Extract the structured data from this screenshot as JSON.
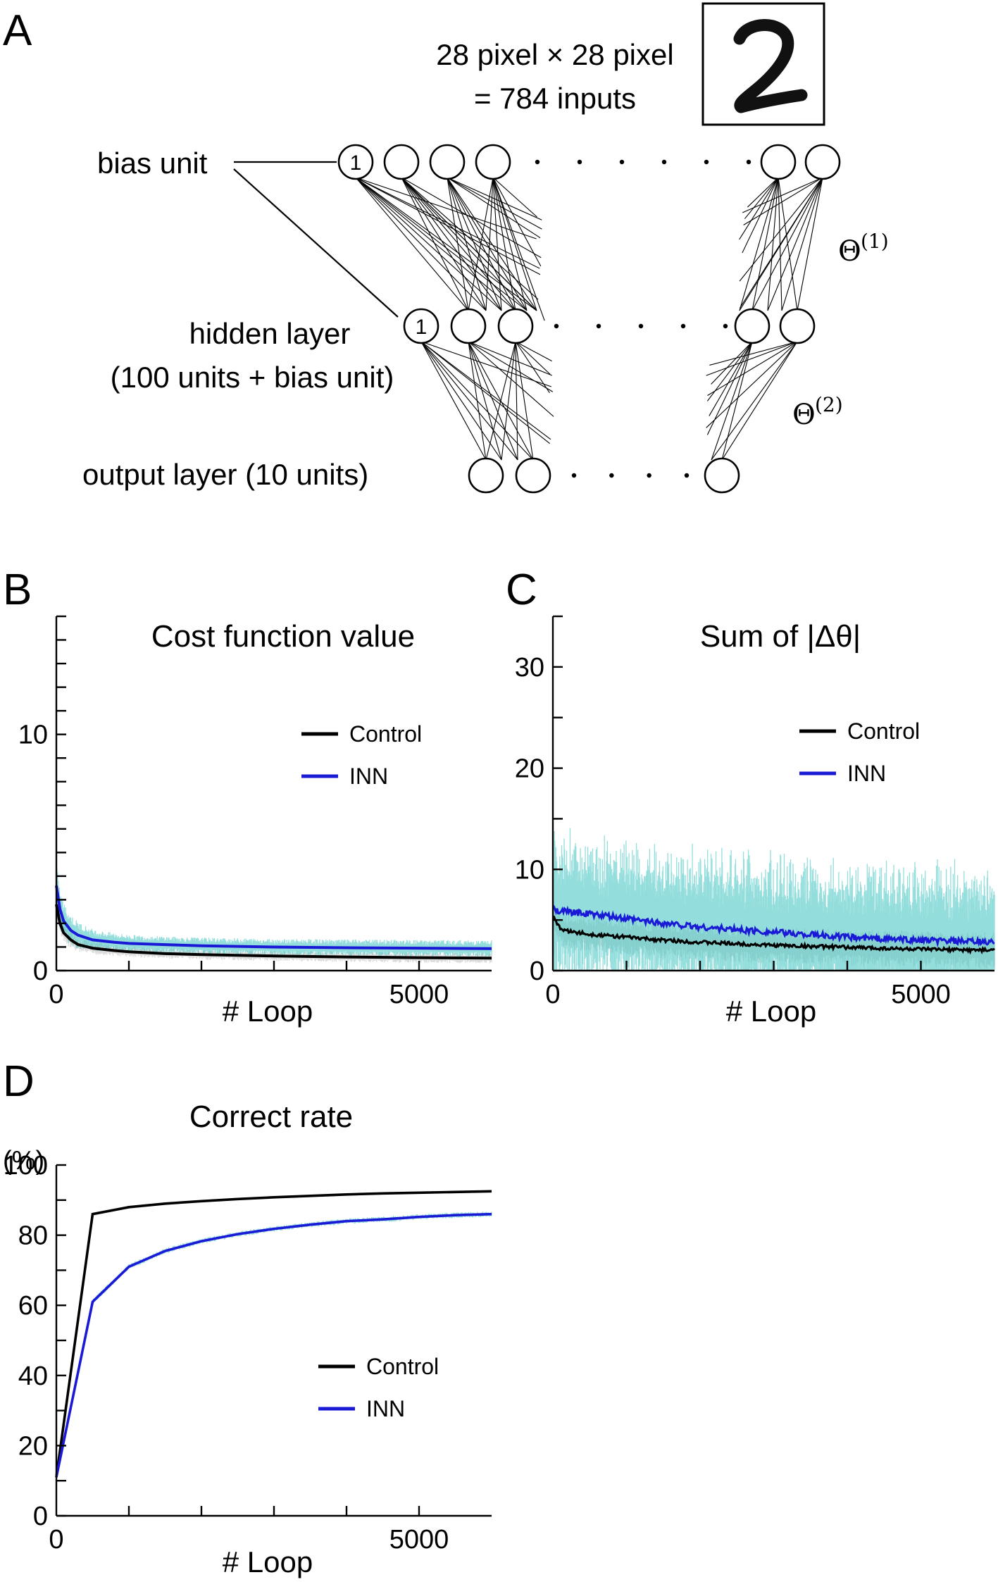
{
  "panel_a": {
    "letter": "A",
    "input_line1": "28 pixel × 28 pixel",
    "input_line2": "= 784 inputs",
    "bias_label": "bias unit",
    "hidden_line1": "hidden layer",
    "hidden_line2": "(100 units + bias unit)",
    "output_label": "output layer (10 units)",
    "bias_node_text": "1",
    "theta_symbol": "Θ",
    "theta1_sup": "(1)",
    "theta2_sup": "(2)",
    "digit_image": "handwritten-digit-2"
  },
  "colors": {
    "control": "#000000",
    "inn": "#1a1ad6",
    "inn_band": "#3cc4c0",
    "control_band": "#b8b8b8"
  },
  "chart_data": [
    {
      "panel": "B",
      "type": "line",
      "title": "Cost function value",
      "xlabel": "# Loop",
      "ylabel": "",
      "xlim": [
        0,
        6000
      ],
      "ylim": [
        0,
        15
      ],
      "x_ticks_labeled": [
        0,
        5000
      ],
      "y_ticks_labeled": [
        0,
        10
      ],
      "legend_position": "upper-right",
      "series": [
        {
          "name": "Control",
          "x": [
            0,
            50,
            100,
            200,
            300,
            500,
            800,
            1000,
            1500,
            2000,
            3000,
            4000,
            5000,
            6000
          ],
          "values": [
            2.8,
            2.0,
            1.6,
            1.3,
            1.1,
            0.95,
            0.85,
            0.8,
            0.72,
            0.68,
            0.62,
            0.58,
            0.55,
            0.53
          ]
        },
        {
          "name": "INN",
          "x": [
            0,
            50,
            100,
            200,
            300,
            500,
            800,
            1000,
            1500,
            2000,
            3000,
            4000,
            5000,
            6000
          ],
          "values": [
            3.6,
            2.6,
            2.1,
            1.7,
            1.5,
            1.3,
            1.2,
            1.15,
            1.1,
            1.05,
            1.0,
            0.97,
            0.95,
            0.93
          ]
        }
      ]
    },
    {
      "panel": "C",
      "type": "line",
      "title": "Sum of |Δθ|",
      "xlabel": "# Loop",
      "ylabel": "",
      "xlim": [
        0,
        6000
      ],
      "ylim": [
        0,
        35
      ],
      "x_ticks_labeled": [
        0,
        5000
      ],
      "y_ticks_labeled": [
        0,
        10,
        20,
        30
      ],
      "legend_position": "upper-right",
      "series": [
        {
          "name": "Control",
          "x": [
            0,
            50,
            100,
            200,
            500,
            1000,
            1500,
            2000,
            3000,
            4000,
            5000,
            6000
          ],
          "values": [
            5.5,
            4.6,
            4.2,
            3.9,
            3.6,
            3.3,
            3.0,
            2.8,
            2.5,
            2.3,
            2.1,
            2.0
          ]
        },
        {
          "name": "INN",
          "x": [
            0,
            50,
            100,
            200,
            500,
            1000,
            1500,
            2000,
            3000,
            4000,
            5000,
            6000
          ],
          "values": [
            6.5,
            6.0,
            5.9,
            5.8,
            5.6,
            5.1,
            4.7,
            4.3,
            3.8,
            3.3,
            3.0,
            2.8
          ]
        }
      ]
    },
    {
      "panel": "D",
      "type": "line",
      "title": "Correct rate",
      "xlabel": "# Loop",
      "ylabel": "(%)",
      "xlim": [
        0,
        6000
      ],
      "ylim": [
        0,
        100
      ],
      "x_ticks_labeled": [
        0,
        5000
      ],
      "y_ticks_labeled": [
        0,
        20,
        40,
        60,
        80,
        100
      ],
      "legend_position": "center-right",
      "series": [
        {
          "name": "Control",
          "x": [
            0,
            500,
            1000,
            1500,
            2000,
            2500,
            3000,
            3500,
            4000,
            4500,
            5000,
            5500,
            6000
          ],
          "values": [
            11,
            86,
            88,
            89,
            89.7,
            90.3,
            90.8,
            91.2,
            91.6,
            91.9,
            92.1,
            92.3,
            92.5
          ]
        },
        {
          "name": "INN",
          "x": [
            0,
            500,
            1000,
            1500,
            2000,
            2500,
            3000,
            3500,
            4000,
            4500,
            5000,
            5500,
            6000
          ],
          "values": [
            11,
            61,
            71,
            75.5,
            78.3,
            80.3,
            81.8,
            83,
            84,
            84.5,
            85.2,
            85.7,
            86
          ]
        }
      ]
    }
  ]
}
